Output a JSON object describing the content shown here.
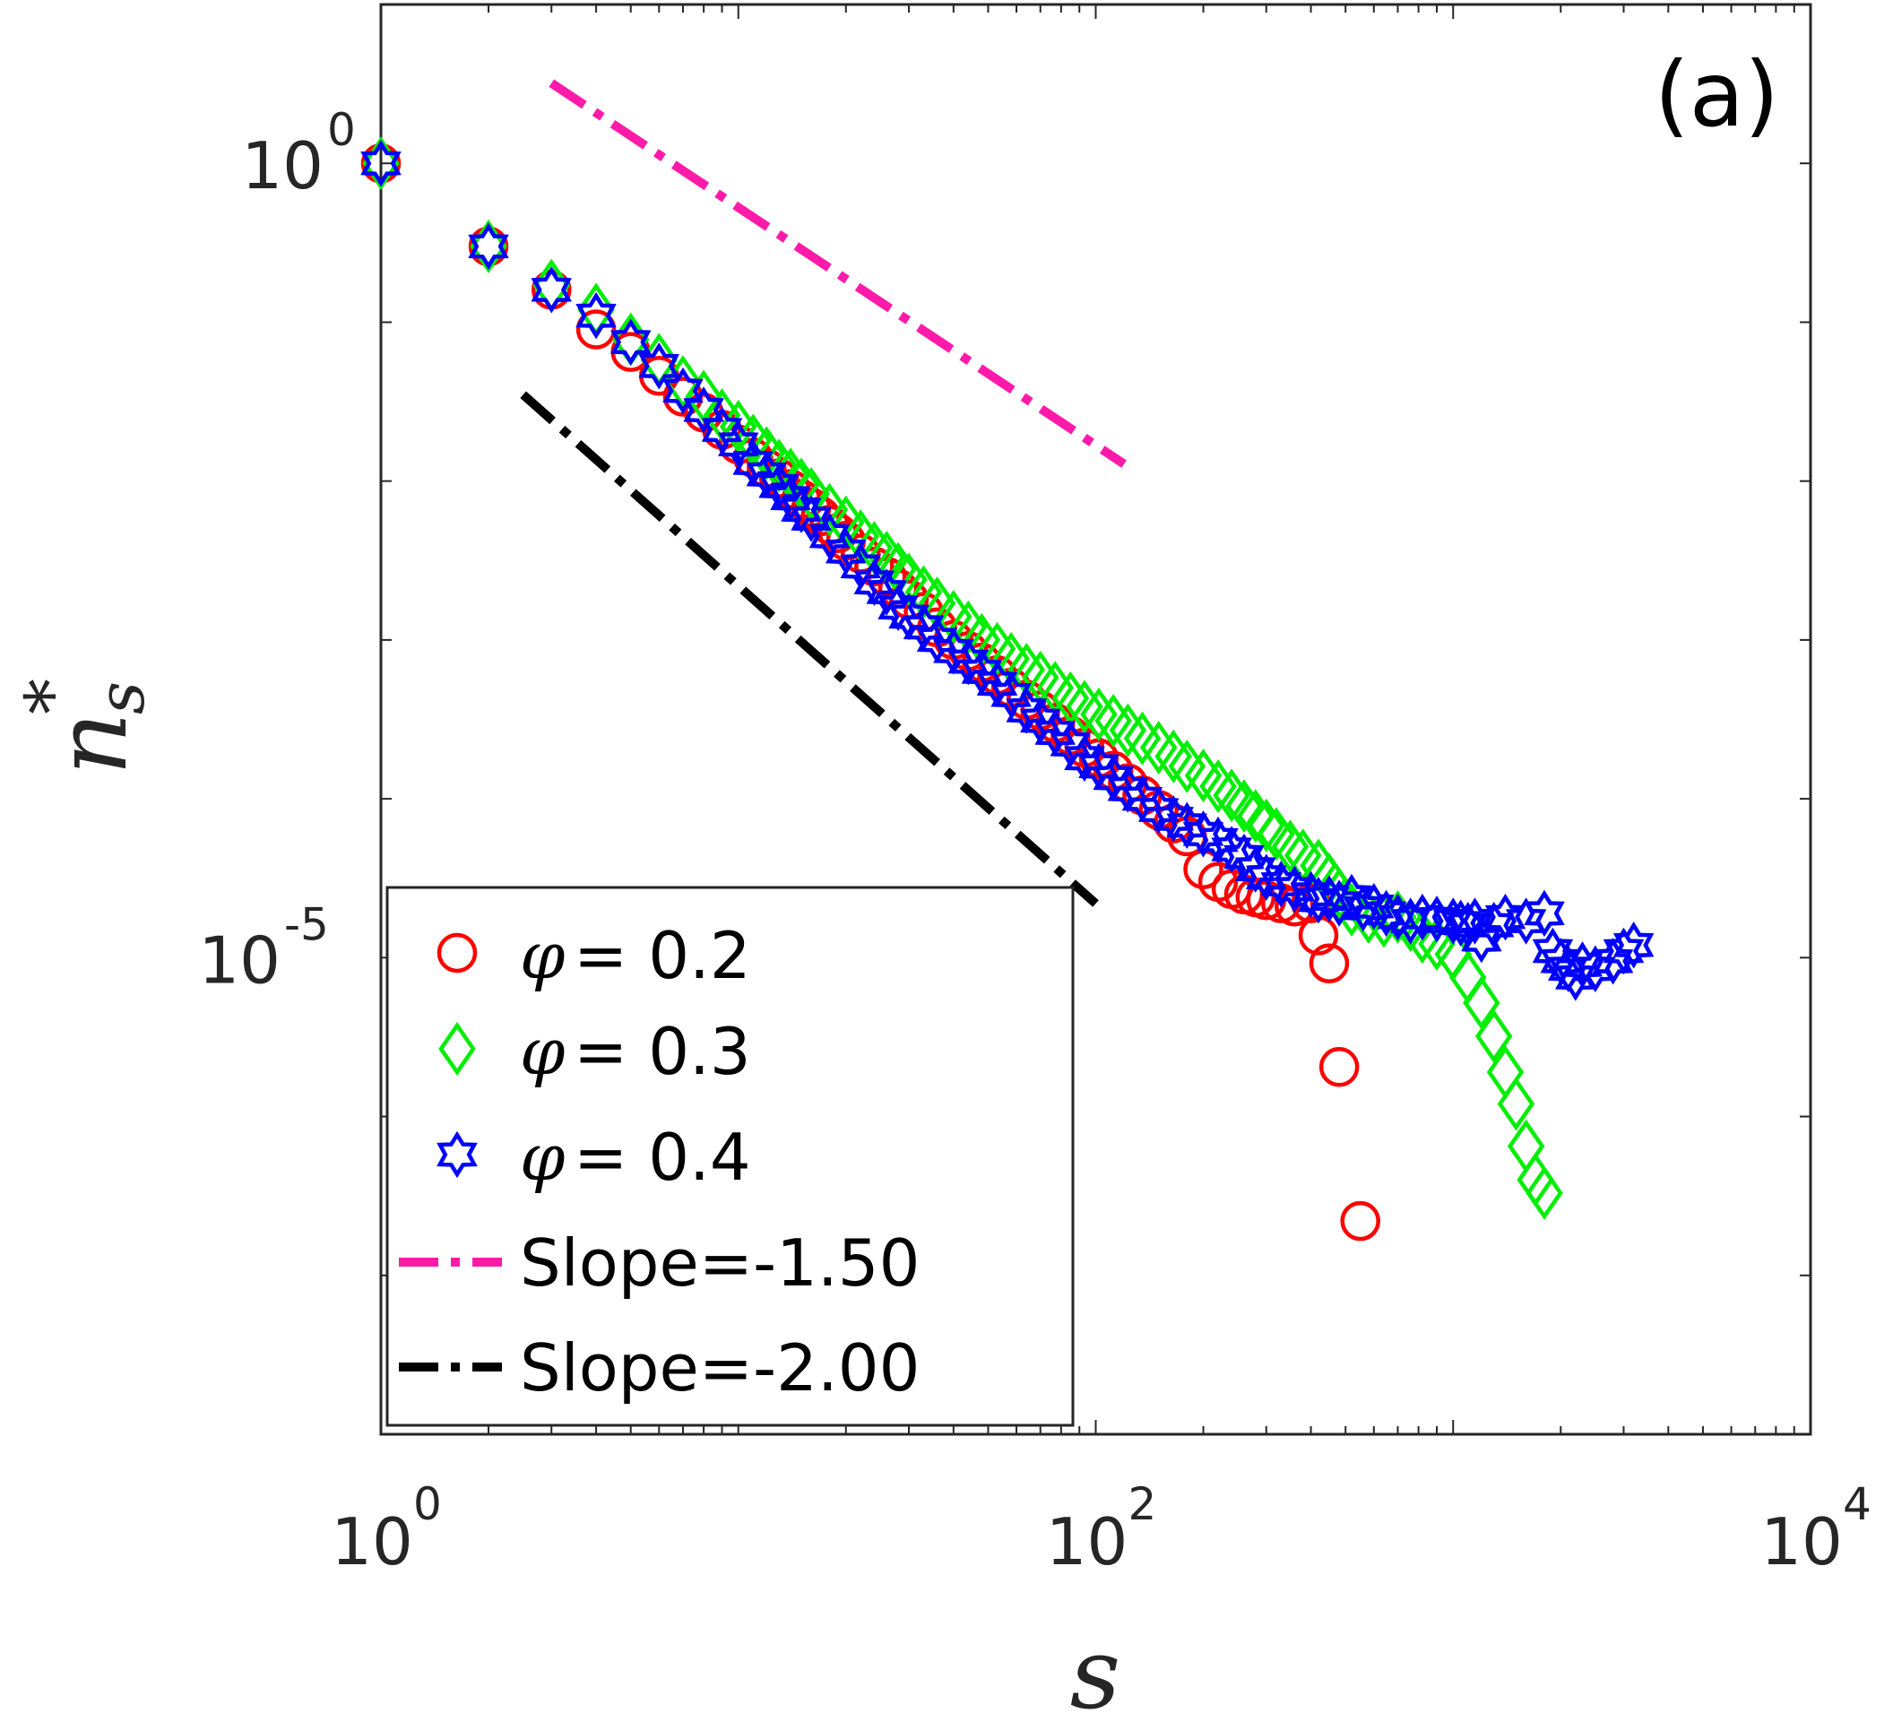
{
  "chart_data": {
    "type": "scatter",
    "panel_label": "(a)",
    "xlabel": "s",
    "ylabel": "n",
    "ylabel_sub": "s",
    "ylabel_sup": "*",
    "xscale": "log",
    "yscale": "log",
    "xlim": [
      1,
      10000
    ],
    "ylim": [
      1e-08,
      10
    ],
    "x_ticks": [
      {
        "value": 1,
        "base": "10",
        "exp": "0"
      },
      {
        "value": 100,
        "base": "10",
        "exp": "2"
      },
      {
        "value": 10000,
        "base": "10",
        "exp": "4"
      }
    ],
    "y_ticks": [
      {
        "value": 1,
        "base": "10",
        "exp": "0"
      },
      {
        "value": 1e-05,
        "base": "10",
        "exp": "-5"
      }
    ],
    "legend_position": "bottom-left",
    "series": [
      {
        "name": "φ = 0.2",
        "symbol": "φ",
        "eq_text": "= 0.2",
        "marker": "circle",
        "color": "#ff0000",
        "x": [
          1,
          2,
          3,
          4,
          5,
          6,
          7,
          8,
          9,
          10,
          11,
          12,
          13,
          14,
          15,
          16,
          17,
          18,
          19,
          20,
          22,
          24,
          26,
          28,
          30,
          33,
          36,
          40,
          44,
          48,
          53,
          58,
          64,
          70,
          77,
          85,
          93,
          102,
          112,
          123,
          135,
          150,
          165,
          180,
          200,
          220,
          240,
          260,
          280,
          300,
          330,
          360,
          400,
          420,
          450,
          480,
          550
        ],
        "y": [
          1,
          0.3,
          0.16,
          0.09,
          0.065,
          0.046,
          0.034,
          0.027,
          0.021,
          0.017,
          0.014,
          0.012,
          0.0104,
          0.0089,
          0.0077,
          0.0068,
          0.006,
          0.0053,
          0.0047,
          0.0042,
          0.0035,
          0.0029,
          0.0025,
          0.0021,
          0.0018,
          0.0015,
          0.0012,
          0.001,
          0.00085,
          0.00072,
          0.0006,
          0.0005,
          0.00042,
          0.00036,
          0.0003,
          0.00025,
          0.00021,
          0.00018,
          0.00015,
          0.000125,
          0.000105,
          8.5e-05,
          7e-05,
          5.8e-05,
          3.6e-05,
          3e-05,
          2.7e-05,
          2.5e-05,
          2.4e-05,
          2.3e-05,
          2.2e-05,
          2.1e-05,
          2.2e-05,
          1.38e-05,
          9.2e-06,
          2.05e-06,
          2.2e-07
        ]
      },
      {
        "name": "φ = 0.3",
        "symbol": "φ",
        "eq_text": "= 0.3",
        "marker": "diamond",
        "color": "#00ee00",
        "x": [
          1,
          2,
          3,
          4,
          5,
          6,
          7,
          8,
          9,
          10,
          11,
          12,
          13,
          14,
          15,
          16,
          18,
          20,
          22,
          24,
          26,
          28,
          30,
          33,
          36,
          40,
          44,
          48,
          53,
          58,
          64,
          70,
          77,
          85,
          93,
          102,
          112,
          123,
          135,
          150,
          165,
          180,
          200,
          220,
          240,
          260,
          280,
          300,
          320,
          350,
          380,
          420,
          450,
          480,
          520,
          580,
          640,
          700,
          760,
          820,
          900,
          1000,
          1100,
          1200,
          1300,
          1400,
          1500,
          1600,
          1700,
          1800
        ],
        "y": [
          1,
          0.3,
          0.17,
          0.12,
          0.078,
          0.058,
          0.042,
          0.034,
          0.026,
          0.022,
          0.018,
          0.015,
          0.0125,
          0.011,
          0.0095,
          0.0083,
          0.0066,
          0.0055,
          0.0045,
          0.0038,
          0.0033,
          0.0028,
          0.0024,
          0.002,
          0.0017,
          0.0014,
          0.0012,
          0.001,
          0.00088,
          0.00076,
          0.00065,
          0.00058,
          0.0005,
          0.00043,
          0.00038,
          0.00034,
          0.00031,
          0.00027,
          0.00024,
          0.00021,
          0.000185,
          0.00016,
          0.00014,
          0.00012,
          0.000105,
          9e-05,
          7.8e-05,
          6.8e-05,
          6e-05,
          5e-05,
          4.4e-05,
          3.8e-05,
          3.1e-05,
          2.5e-05,
          2e-05,
          1.8e-05,
          1.7e-05,
          1.8e-05,
          1.6e-05,
          1.35e-05,
          1.22e-05,
          1.05e-05,
          7.5e-06,
          5.2e-06,
          3.2e-06,
          1.9e-06,
          1.2e-06,
          6.5e-07,
          4e-07,
          3.3e-07
        ]
      },
      {
        "name": "φ = 0.4",
        "symbol": "φ",
        "eq_text": "= 0.4",
        "marker": "hexagram",
        "color": "#0000ff",
        "x": [
          1,
          2,
          3,
          4,
          5,
          6,
          7,
          8,
          9,
          10,
          11,
          12,
          13,
          14,
          15,
          16,
          18,
          20,
          22,
          24,
          26,
          28,
          30,
          33,
          36,
          40,
          44,
          48,
          53,
          58,
          64,
          70,
          77,
          85,
          93,
          102,
          112,
          123,
          135,
          150,
          165,
          180,
          200,
          220,
          240,
          260,
          280,
          300,
          330,
          360,
          400,
          420,
          450,
          480,
          520,
          560,
          600,
          650,
          700,
          760,
          820,
          900,
          1000,
          1050,
          1100,
          1150,
          1200,
          1300,
          1400,
          1600,
          1800,
          1900,
          2000,
          2100,
          2200,
          2300,
          2500,
          2800,
          3000,
          3200
        ],
        "y": [
          1,
          0.3,
          0.16,
          0.11,
          0.075,
          0.053,
          0.037,
          0.028,
          0.021,
          0.017,
          0.013,
          0.011,
          0.0093,
          0.0078,
          0.0066,
          0.0058,
          0.0045,
          0.0036,
          0.0029,
          0.0023,
          0.002,
          0.0016,
          0.0014,
          0.0012,
          0.001,
          0.00085,
          0.00073,
          0.00063,
          0.00053,
          0.00045,
          0.00036,
          0.00031,
          0.00026,
          0.00022,
          0.00018,
          0.00016,
          0.000135,
          0.000115,
          0.0001,
          8.5e-05,
          7.5e-05,
          6.8e-05,
          6e-05,
          5.5e-05,
          4.8e-05,
          4.3e-05,
          3.6e-05,
          3.2e-05,
          2.9e-05,
          2.7e-05,
          2.5e-05,
          2.3e-05,
          2.35e-05,
          2.2e-05,
          2.4e-05,
          2.05e-05,
          2.1e-05,
          1.9e-05,
          1.8e-05,
          1.7e-05,
          1.8e-05,
          1.75e-05,
          1.7e-05,
          1.65e-05,
          1.6e-05,
          1.7e-05,
          1.3e-05,
          1.6e-05,
          1.8e-05,
          1.7e-05,
          1.9e-05,
          1.1e-05,
          9.5e-06,
          8.5e-06,
          7.5e-06,
          9e-06,
          8.5e-06,
          9.5e-06,
          1.1e-05,
          1.2e-05
        ]
      }
    ],
    "reference_lines": [
      {
        "name": "Slope=-1.50",
        "slope": -1.5,
        "x": [
          3,
          120
        ],
        "y": [
          3.2,
          0.0128
        ],
        "color": "#ff1aaa",
        "style": "dash-dot"
      },
      {
        "name": "Slope=-2.00",
        "slope": -2.0,
        "x": [
          2.5,
          100
        ],
        "y": [
          0.035,
          2.19e-05
        ],
        "color": "#000000",
        "style": "dash-dot"
      }
    ]
  }
}
